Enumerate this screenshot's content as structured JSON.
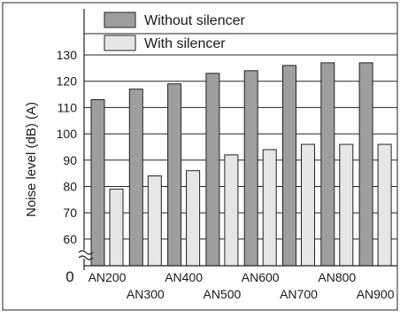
{
  "chart_data": {
    "type": "bar",
    "title": "",
    "xlabel": "",
    "ylabel": "Noise level (dB) (A)",
    "ylim": [
      50,
      130
    ],
    "yticks": [
      60,
      70,
      80,
      90,
      100,
      110,
      120,
      130
    ],
    "y_zero_label": "0",
    "grid": true,
    "legend_position": "top",
    "categories": [
      "AN200",
      "AN300",
      "AN400",
      "AN500",
      "AN600",
      "AN700",
      "AN800",
      "AN900"
    ],
    "series": [
      {
        "name": "Without silencer",
        "color": "#9e9e9e",
        "values": [
          113,
          117,
          119,
          123,
          124,
          126,
          127,
          127
        ]
      },
      {
        "name": "With silencer",
        "color": "#e6e6e6",
        "values": [
          79,
          84,
          86,
          92,
          94,
          96,
          96,
          96
        ]
      }
    ]
  }
}
